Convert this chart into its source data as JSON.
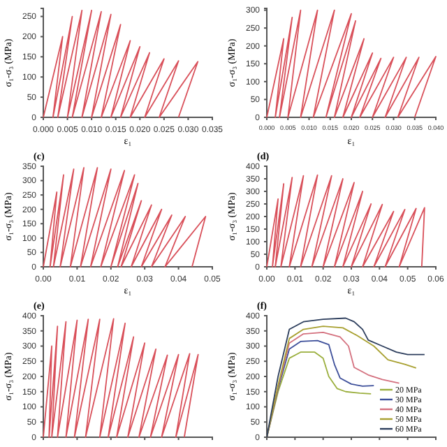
{
  "chart_data": [
    {
      "type": "line",
      "xlabel": "ε₁",
      "ylabel": "σ₁-σ₃ (MPa)",
      "xlim": [
        0,
        0.035
      ],
      "ylim": [
        0,
        270
      ],
      "xticks": [
        {
          "value": 0,
          "label": "0.000"
        },
        0.005,
        {
          "value": 0.01,
          "label": "0.010"
        },
        0.015,
        {
          "value": 0.02,
          "label": "0.020"
        },
        0.025,
        {
          "value": 0.03,
          "label": "0.030"
        },
        0.035
      ],
      "yticks": [
        0,
        50,
        100,
        150,
        200,
        250
      ],
      "marker": "none",
      "legend": false,
      "series": [
        {
          "color": "#d9505a",
          "x": [
            0,
            0.004,
            0.002,
            0.006,
            0.003,
            0.008,
            0.005,
            0.01,
            0.006,
            0.012,
            0.008,
            0.014,
            0.01,
            0.016,
            0.012,
            0.018,
            0.014,
            0.02,
            0.016,
            0.022,
            0.018,
            0.025,
            0.021,
            0.028,
            0.024,
            0.032,
            0.028
          ],
          "values": [
            0,
            200,
            0,
            250,
            0,
            265,
            0,
            265,
            0,
            262,
            0,
            255,
            0,
            230,
            0,
            190,
            0,
            175,
            0,
            160,
            0,
            145,
            0,
            140,
            0,
            138,
            0
          ]
        }
      ]
    },
    {
      "type": "line",
      "xlabel": "ε₁",
      "ylabel": "σ₁-σ₃ (MPa)",
      "xlim": [
        0,
        0.04
      ],
      "ylim": [
        0,
        305
      ],
      "xticks": [
        {
          "value": 0,
          "label": "0.000"
        },
        0.005,
        {
          "value": 0.01,
          "label": "0.010"
        },
        0.015,
        {
          "value": 0.02,
          "label": "0.020"
        },
        0.025,
        {
          "value": 0.03,
          "label": "0.030"
        },
        0.035,
        {
          "value": 0.04,
          "label": "0.040"
        }
      ],
      "yticks": [
        0,
        50,
        100,
        150,
        200,
        250,
        300
      ],
      "marker": "none",
      "legend": false,
      "series": [
        {
          "color": "#d9505a",
          "x": [
            0,
            0.004,
            0.002,
            0.006,
            0.003,
            0.008,
            0.005,
            0.012,
            0.008,
            0.016,
            0.011,
            0.02,
            0.014,
            0.021,
            0.016,
            0.023,
            0.018,
            0.025,
            0.02,
            0.027,
            0.022,
            0.03,
            0.025,
            0.033,
            0.028,
            0.036,
            0.031,
            0.04,
            0.035
          ],
          "values": [
            0,
            220,
            0,
            280,
            0,
            300,
            0,
            300,
            0,
            300,
            0,
            290,
            0,
            270,
            0,
            220,
            0,
            180,
            0,
            165,
            0,
            168,
            0,
            168,
            0,
            168,
            0,
            170,
            0
          ]
        }
      ]
    },
    {
      "type": "line",
      "title": "(c)",
      "xlabel": "ε₁",
      "ylabel": "σ₁-σ₃ (MPa)",
      "xlim": [
        0,
        0.05
      ],
      "ylim": [
        0,
        350
      ],
      "xticks": [
        {
          "value": 0,
          "label": "0.00"
        },
        0.01,
        0.02,
        0.03,
        0.04,
        {
          "value": 0.05,
          "label": "0.05"
        }
      ],
      "yticks": [
        0,
        50,
        100,
        150,
        200,
        250,
        300,
        350
      ],
      "marker": "none",
      "legend": false,
      "series": [
        {
          "color": "#d9505a",
          "x": [
            0,
            0.004,
            0.002,
            0.006,
            0.003,
            0.009,
            0.005,
            0.012,
            0.008,
            0.016,
            0.011,
            0.02,
            0.014,
            0.024,
            0.017,
            0.027,
            0.02,
            0.028,
            0.022,
            0.029,
            0.023,
            0.032,
            0.026,
            0.035,
            0.029,
            0.038,
            0.032,
            0.042,
            0.036,
            0.048,
            0.044
          ],
          "values": [
            0,
            260,
            0,
            320,
            0,
            340,
            0,
            345,
            0,
            345,
            0,
            340,
            0,
            335,
            0,
            320,
            0,
            290,
            0,
            230,
            0,
            215,
            0,
            200,
            0,
            180,
            0,
            175,
            0,
            175,
            0
          ]
        }
      ]
    },
    {
      "type": "line",
      "title": "(d)",
      "xlabel": "ε₁",
      "ylabel": "σ₁-σ₃ (MPa)",
      "xlim": [
        0,
        0.06
      ],
      "ylim": [
        0,
        400
      ],
      "xticks": [
        {
          "value": 0,
          "label": "0.00"
        },
        0.01,
        0.02,
        0.03,
        0.04,
        0.05,
        {
          "value": 0.06,
          "label": "0.06"
        }
      ],
      "yticks": [
        0,
        50,
        100,
        150,
        200,
        250,
        300,
        350,
        400
      ],
      "marker": "none",
      "legend": false,
      "series": [
        {
          "color": "#d9505a",
          "x": [
            0,
            0.004,
            0.002,
            0.006,
            0.003,
            0.009,
            0.005,
            0.013,
            0.008,
            0.018,
            0.012,
            0.023,
            0.016,
            0.027,
            0.02,
            0.031,
            0.024,
            0.034,
            0.027,
            0.037,
            0.03,
            0.041,
            0.034,
            0.045,
            0.038,
            0.049,
            0.042,
            0.053,
            0.047,
            0.056,
            0.055
          ],
          "values": [
            0,
            270,
            0,
            330,
            0,
            355,
            0,
            362,
            0,
            365,
            0,
            362,
            0,
            350,
            0,
            335,
            0,
            300,
            0,
            250,
            0,
            248,
            0,
            220,
            0,
            228,
            0,
            232,
            0,
            235,
            0
          ]
        }
      ]
    },
    {
      "type": "line",
      "title": "(e)",
      "ylabel": "σ₁-σ₃ (MPa)",
      "xlim": [
        0,
        0.05
      ],
      "ylim": [
        0,
        400
      ],
      "xticks": [
        {
          "value": 0,
          "label": null
        },
        {
          "value": 0.01,
          "label": null
        },
        {
          "value": 0.02,
          "label": null
        },
        {
          "value": 0.03,
          "label": null
        },
        {
          "value": 0.04,
          "label": null
        },
        {
          "value": 0.05,
          "label": null
        }
      ],
      "yticks": [
        0,
        50,
        100,
        150,
        200,
        250,
        300,
        350,
        400
      ],
      "tick_labels": "y",
      "marker": "none",
      "legend": false,
      "series": [
        {
          "color": "#d9505a",
          "x": [
            0,
            0.0025,
            0.0017,
            0.0042,
            0.0025,
            0.0067,
            0.0042,
            0.01,
            0.0067,
            0.0133,
            0.0092,
            0.0167,
            0.0125,
            0.0208,
            0.0167,
            0.0242,
            0.0192,
            0.0267,
            0.0217,
            0.03,
            0.025,
            0.0333,
            0.0283,
            0.0367,
            0.0317,
            0.04,
            0.035,
            0.0433,
            0.0392,
            0.0458,
            0.0417
          ],
          "values": [
            0,
            300,
            0,
            365,
            0,
            380,
            0,
            385,
            0,
            388,
            0,
            388,
            0,
            390,
            0,
            375,
            0,
            330,
            0,
            310,
            0,
            290,
            0,
            270,
            0,
            272,
            0,
            275,
            0,
            272,
            0
          ]
        }
      ]
    },
    {
      "type": "line",
      "title": "(f)",
      "ylabel": "σ₁-σ₃ (MPa)",
      "xlim": [
        0,
        0.06
      ],
      "ylim": [
        0,
        400
      ],
      "xticks": [
        {
          "value": 0,
          "label": null
        },
        {
          "value": 0.01,
          "label": null
        },
        {
          "value": 0.02,
          "label": null
        },
        {
          "value": 0.03,
          "label": null
        },
        {
          "value": 0.04,
          "label": null
        },
        {
          "value": 0.05,
          "label": null
        },
        {
          "value": 0.06,
          "label": null
        }
      ],
      "yticks": [
        0,
        50,
        100,
        150,
        200,
        250,
        300,
        350,
        400
      ],
      "tick_labels": "y",
      "marker": "none",
      "legend": "bottom right",
      "series": [
        {
          "name": "20 MPa",
          "color": "#9aae3c",
          "x": [
            0,
            0.004,
            0.008,
            0.012,
            0.017,
            0.02,
            0.022,
            0.025,
            0.028,
            0.033,
            0.037
          ],
          "values": [
            0,
            150,
            260,
            280,
            280,
            260,
            200,
            160,
            150,
            145,
            143
          ]
        },
        {
          "name": "30 MPa",
          "color": "#3d4f9a",
          "x": [
            0,
            0.004,
            0.008,
            0.012,
            0.018,
            0.022,
            0.024,
            0.026,
            0.03,
            0.034,
            0.038
          ],
          "values": [
            0,
            160,
            290,
            315,
            318,
            305,
            240,
            195,
            175,
            168,
            170
          ]
        },
        {
          "name": "40 MPa",
          "color": "#d4707e",
          "x": [
            0,
            0.004,
            0.008,
            0.013,
            0.02,
            0.026,
            0.029,
            0.031,
            0.036,
            0.041,
            0.047
          ],
          "values": [
            0,
            165,
            310,
            340,
            345,
            330,
            300,
            230,
            205,
            190,
            178
          ]
        },
        {
          "name": "50 MPa",
          "color": "#a8a030",
          "x": [
            0,
            0.004,
            0.008,
            0.013,
            0.02,
            0.027,
            0.032,
            0.038,
            0.043,
            0.049,
            0.053
          ],
          "values": [
            0,
            170,
            325,
            355,
            365,
            360,
            335,
            300,
            255,
            240,
            228
          ]
        },
        {
          "name": "60 MPa",
          "color": "#2c3d5c",
          "x": [
            0,
            0.004,
            0.008,
            0.013,
            0.02,
            0.028,
            0.031,
            0.034,
            0.036,
            0.041,
            0.046,
            0.05,
            0.056
          ],
          "values": [
            0,
            200,
            355,
            380,
            388,
            392,
            380,
            355,
            320,
            300,
            280,
            272,
            272
          ]
        }
      ]
    }
  ]
}
